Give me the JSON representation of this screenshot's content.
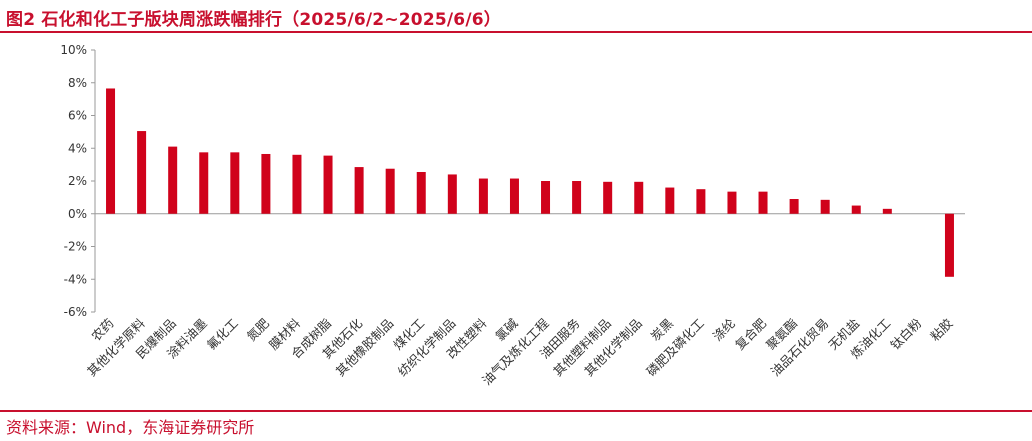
{
  "header": {
    "title": "图2  石化和化工子版块周涨跌幅排行（2025/6/2~2025/6/6）"
  },
  "footer": {
    "source": "资料来源：Wind，东海证券研究所"
  },
  "colors": {
    "accent": "#c8102e",
    "bar": "#d0021b",
    "axis": "#9a9a9a",
    "text": "#333333"
  },
  "chart_data": {
    "type": "bar",
    "title": "",
    "xlabel": "",
    "ylabel": "",
    "ylim": [
      -6,
      10
    ],
    "yticks": [
      10,
      8,
      6,
      4,
      2,
      0,
      -2,
      -4,
      -6
    ],
    "ytick_labels": [
      "10%",
      "8%",
      "6%",
      "4%",
      "2%",
      "0%",
      "-2%",
      "-4%",
      "-6%"
    ],
    "grid": false,
    "legend": "none",
    "categories": [
      "农药",
      "其他化学原料",
      "民爆制品",
      "涂料油墨",
      "氟化工",
      "氮肥",
      "膜材料",
      "合成树脂",
      "其他石化",
      "其他橡胶制品",
      "煤化工",
      "纺织化学制品",
      "改性塑料",
      "氯碱",
      "油气及炼化工程",
      "油田服务",
      "其他塑料制品",
      "其他化学制品",
      "炭黑",
      "磷肥及磷化工",
      "涤纶",
      "复合肥",
      "聚氨酯",
      "油品石化贸易",
      "无机盐",
      "炼油化工",
      "钛白粉",
      "粘胶"
    ],
    "values": [
      7.65,
      5.05,
      4.1,
      3.75,
      3.75,
      3.65,
      3.6,
      3.55,
      2.85,
      2.75,
      2.55,
      2.4,
      2.15,
      2.15,
      2.0,
      2.0,
      1.95,
      1.95,
      1.6,
      1.5,
      1.35,
      1.35,
      0.9,
      0.85,
      0.5,
      0.3,
      0.0,
      -3.85
    ]
  }
}
